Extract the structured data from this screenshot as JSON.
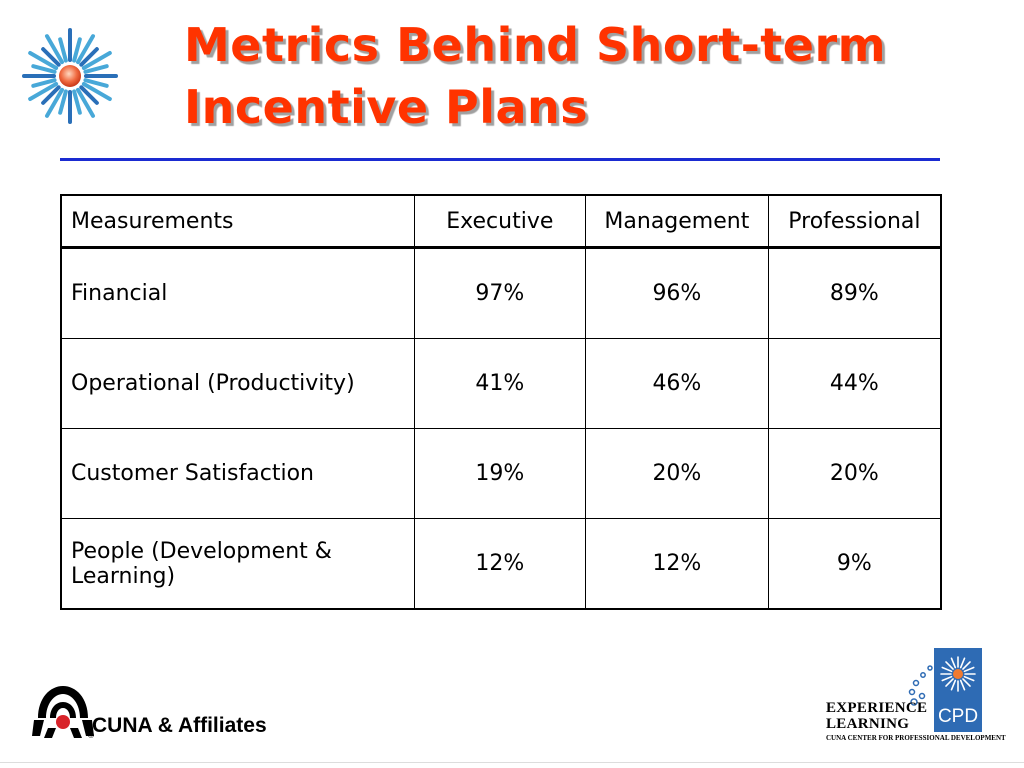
{
  "slide": {
    "title": "Metrics Behind Short-term Incentive Plans",
    "title_color": "#ff3300",
    "rule_color": "#1a2bd1",
    "decoration_icon": "sunburst-icon"
  },
  "table": {
    "headers": [
      "Measurements",
      "Executive",
      "Management",
      "Professional"
    ],
    "rows": [
      {
        "measure": "Financial",
        "executive": "97%",
        "management": "96%",
        "professional": "89%"
      },
      {
        "measure": "Operational (Productivity)",
        "executive": "41%",
        "management": "46%",
        "professional": "44%"
      },
      {
        "measure": "Customer Satisfaction",
        "executive": "19%",
        "management": "20%",
        "professional": "20%"
      },
      {
        "measure": "People (Development & Learning)",
        "executive": "12%",
        "management": "12%",
        "professional": "9%"
      }
    ]
  },
  "footer": {
    "left_logo": {
      "icon": "cuna-logo-icon",
      "text": "CUNA & Affiliates"
    },
    "right_logo": {
      "icon": "cpd-logo-icon",
      "name_line1": "EXPERIENCE",
      "name_line2": "LEARNING",
      "badge": "CPD",
      "subtitle": "CUNA CENTER FOR PROFESSIONAL DEVELOPMENT",
      "badge_color": "#2e6bb4"
    }
  }
}
